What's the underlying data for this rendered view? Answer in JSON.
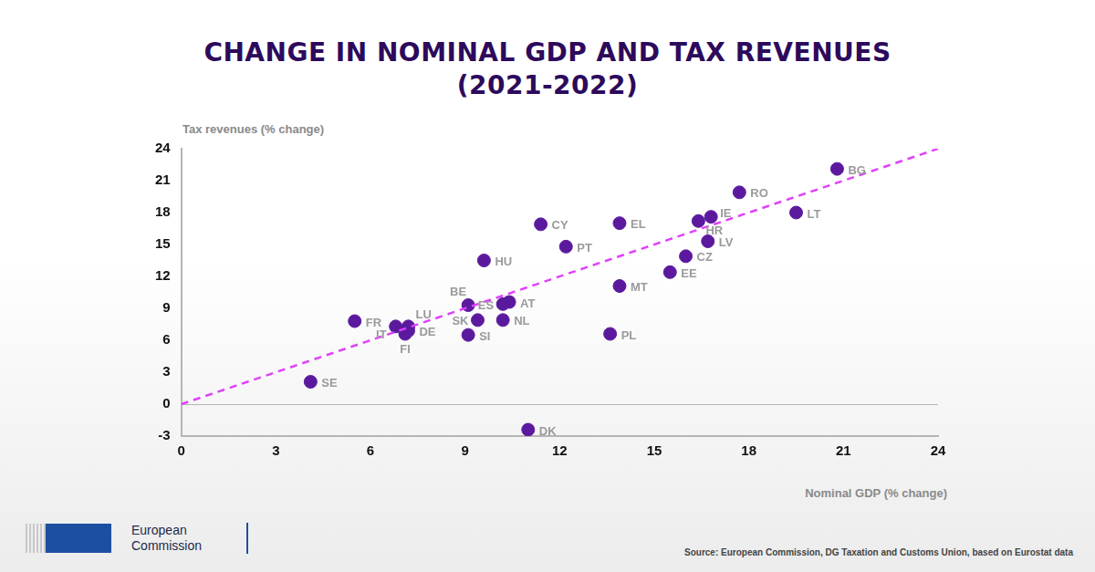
{
  "chart_data": {
    "type": "scatter",
    "title": "CHANGE IN NOMINAL GDP AND TAX REVENUES",
    "subtitle": "(2021-2022)",
    "x_label": "Nominal GDP (% change)",
    "y_label": "Tax revenues (% change)",
    "source": "Source: European Commission, DG Taxation and Customs Union, based on Eurostat data",
    "brand": "European Commission",
    "labels": [
      "BG",
      "RO",
      "LT",
      "IE",
      "HR",
      "LV",
      "CZ",
      "EE",
      "EL",
      "CY",
      "PT",
      "HU",
      "MT",
      "PL",
      "AT",
      "ES",
      "BE",
      "SK",
      "NL",
      "SI",
      "FR",
      "LU",
      "IT",
      "DE",
      "FI",
      "SE",
      "DK"
    ],
    "x": [
      20.8,
      17.7,
      19.5,
      16.8,
      16.4,
      16.7,
      16.0,
      15.5,
      13.9,
      11.4,
      12.2,
      9.6,
      13.9,
      13.6,
      10.4,
      10.2,
      9.1,
      9.4,
      10.2,
      9.1,
      5.5,
      7.2,
      6.8,
      7.2,
      7.1,
      4.1,
      11.0
    ],
    "values": [
      22.1,
      19.9,
      18.0,
      17.6,
      17.2,
      15.3,
      13.9,
      12.4,
      17.0,
      16.9,
      14.8,
      13.5,
      11.1,
      6.6,
      9.6,
      9.4,
      9.3,
      7.9,
      7.9,
      6.5,
      7.8,
      7.3,
      7.3,
      6.9,
      6.6,
      2.1,
      -2.4
    ],
    "color": "#5b1a9e",
    "marker": "circle",
    "reference_line": {
      "x": [
        0,
        24
      ],
      "values": [
        0,
        24
      ],
      "color": "#e040fb",
      "line_style": "dashed"
    },
    "xlim": [
      0,
      24
    ],
    "xticks": [
      0,
      3,
      6,
      9,
      12,
      15,
      18,
      21,
      24
    ],
    "ylim": [
      -3,
      24
    ],
    "yticks": [
      -3,
      0,
      3,
      6,
      9,
      12,
      15,
      18,
      21,
      24
    ],
    "grid": false
  }
}
